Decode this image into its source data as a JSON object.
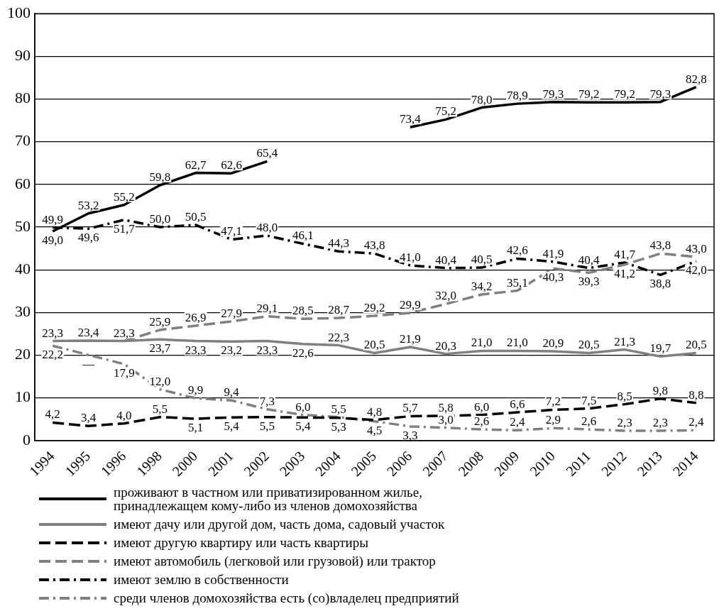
{
  "chart_data": {
    "type": "line",
    "categories": [
      "1994",
      "1995",
      "1996",
      "1998",
      "2000",
      "2001",
      "2002",
      "2003",
      "2004",
      "2005",
      "2006",
      "2007",
      "2008",
      "2009",
      "2010",
      "2011",
      "2012",
      "2013",
      "2014"
    ],
    "ylim": [
      0,
      100
    ],
    "yticks": [
      0,
      10,
      20,
      30,
      40,
      50,
      60,
      70,
      80,
      90,
      100
    ],
    "grid": "y",
    "legend": "bottom",
    "marker": "none",
    "series": [
      {
        "name": "проживают в частном или приватизированном жилье, принадлежащем кому-либо из членов домохозяйства",
        "color": "#000000",
        "line_style": "solid",
        "values": [
          49.0,
          53.2,
          55.2,
          59.8,
          62.7,
          62.6,
          65.4,
          null,
          null,
          null,
          73.4,
          75.2,
          78.0,
          78.9,
          79.3,
          79.2,
          79.2,
          79.3,
          82.8
        ],
        "value_labels": [
          "49,0",
          "53,2",
          "55,2",
          "59,8",
          "62,7",
          "62,6",
          "65,4",
          null,
          null,
          null,
          "73,4",
          "75,2",
          "78,0",
          "78,9",
          "79,3",
          "79,2",
          "79,2",
          "79,3",
          "82,8"
        ]
      },
      {
        "name": "имеют дачу или другой дом, часть дома, садовый участок",
        "color": "#808080",
        "line_style": "solid",
        "values": [
          23.3,
          23.4,
          23.3,
          23.7,
          23.3,
          23.2,
          23.3,
          22.6,
          22.3,
          20.5,
          21.9,
          20.3,
          21.0,
          21.0,
          20.9,
          20.5,
          21.3,
          19.7,
          20.5
        ],
        "value_labels": [
          "23,3",
          "23,4",
          "23,3",
          "23,7",
          "23,3",
          "23,2",
          "23,3",
          "22,6",
          "22,3",
          "20,5",
          "21,9",
          "20,3",
          "21,0",
          "21,0",
          "20,9",
          "20,5",
          "21,3",
          "19,7",
          "20,5"
        ]
      },
      {
        "name": "имеют другую квартиру или часть квартиры",
        "color": "#000000",
        "line_style": "dashed",
        "values": [
          4.2,
          3.4,
          4.0,
          5.5,
          5.1,
          5.4,
          5.5,
          5.4,
          5.3,
          4.8,
          5.7,
          5.8,
          6.0,
          6.6,
          7.2,
          7.5,
          8.5,
          9.8,
          8.8
        ],
        "value_labels": [
          "4,2",
          "3,4",
          "4,0",
          "5,5",
          "5,1",
          "5,4",
          "5,5",
          "5,4",
          "5,3",
          "4,8",
          "5,7",
          "5,8",
          "6,0",
          "6,6",
          "7,2",
          "7,5",
          "8,5",
          "9,8",
          "8,8"
        ]
      },
      {
        "name": "имеют автомобиль (легковой или грузовой) или трактор",
        "color": "#808080",
        "line_style": "dashed",
        "values": [
          null,
          null,
          23.3,
          25.9,
          26.9,
          27.9,
          29.1,
          28.5,
          28.7,
          29.2,
          29.9,
          32.0,
          34.2,
          35.1,
          40.3,
          39.3,
          41.2,
          43.8,
          43.0
        ],
        "value_labels": [
          null,
          null,
          null,
          "25,9",
          "26,9",
          "27,9",
          "29,1",
          "28,5",
          "28,7",
          "29,2",
          "29,9",
          "32,0",
          "34,2",
          "35,1",
          "40,3",
          "39,3",
          "41,2",
          "43,8",
          "43,0"
        ]
      },
      {
        "name": "имеют землю в собственности",
        "color": "#000000",
        "line_style": "dashdot",
        "values": [
          49.9,
          49.6,
          51.7,
          50.0,
          50.5,
          47.1,
          48.0,
          46.1,
          44.3,
          43.8,
          41.0,
          40.4,
          40.5,
          42.6,
          41.9,
          40.4,
          41.7,
          38.8,
          42.0
        ],
        "value_labels": [
          "49,9",
          "49,6",
          "51,7",
          "50,0",
          "50,5",
          "47,1",
          "48,0",
          "46,1",
          "44,3",
          "43,8",
          "41,0",
          "40,4",
          "40,5",
          "42,6",
          "41,9",
          "40,4",
          "41,7",
          "38,8",
          "42,0"
        ]
      },
      {
        "name": "среди членов домохозяйства есть (со)владелец предприятий",
        "color": "#808080",
        "line_style": "dashdot",
        "values": [
          22.2,
          null,
          17.9,
          12.0,
          9.9,
          9.4,
          7.3,
          6.0,
          5.5,
          4.5,
          3.3,
          3.0,
          2.6,
          2.4,
          2.9,
          2.6,
          2.3,
          2.3,
          2.4
        ],
        "value_labels": [
          "22,2",
          "—",
          "17,9",
          "12,0",
          "9,9",
          "9,4",
          "7,3",
          "6,0",
          "5,5",
          "4,5",
          "3,3",
          "3,0",
          "2,6",
          "2,4",
          "2,9",
          "2,6",
          "2,3",
          "2,3",
          "2,4"
        ]
      }
    ]
  }
}
